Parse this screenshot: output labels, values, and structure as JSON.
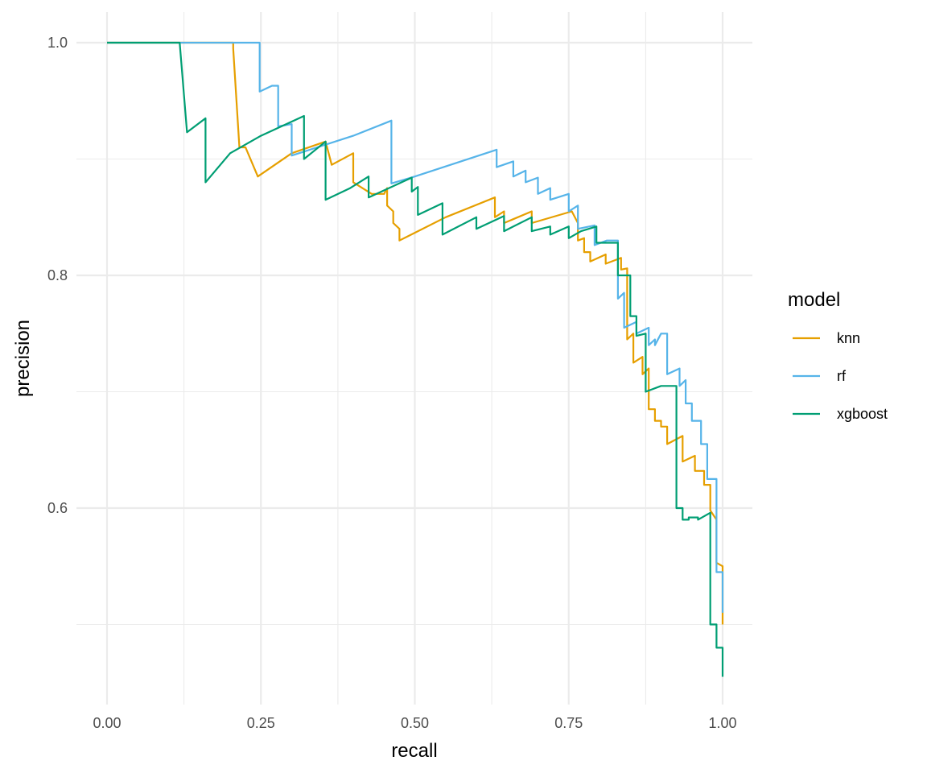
{
  "chart_data": {
    "type": "line",
    "xlabel": "recall",
    "ylabel": "precision",
    "xlim": [
      0,
      1
    ],
    "ylim": [
      0.47,
      1.0
    ],
    "x_ticks": [
      0.0,
      0.25,
      0.5,
      0.75,
      1.0
    ],
    "x_tick_labels": [
      "0.00",
      "0.25",
      "0.50",
      "0.75",
      "1.00"
    ],
    "y_ticks": [
      0.6,
      0.8,
      1.0
    ],
    "y_tick_labels": [
      "0.6",
      "0.8",
      "1.0"
    ],
    "grid": true,
    "legend": {
      "title": "model",
      "position": "right"
    },
    "series": [
      {
        "name": "knn",
        "color": "#E69F00",
        "points": [
          [
            0.0,
            1.0
          ],
          [
            0.205,
            1.0
          ],
          [
            0.205,
            0.995
          ],
          [
            0.215,
            0.91
          ],
          [
            0.225,
            0.91
          ],
          [
            0.245,
            0.885
          ],
          [
            0.3,
            0.905
          ],
          [
            0.355,
            0.915
          ],
          [
            0.365,
            0.895
          ],
          [
            0.4,
            0.905
          ],
          [
            0.4,
            0.88
          ],
          [
            0.43,
            0.87
          ],
          [
            0.45,
            0.87
          ],
          [
            0.455,
            0.875
          ],
          [
            0.455,
            0.86
          ],
          [
            0.465,
            0.855
          ],
          [
            0.465,
            0.845
          ],
          [
            0.475,
            0.84
          ],
          [
            0.475,
            0.83
          ],
          [
            0.55,
            0.85
          ],
          [
            0.63,
            0.867
          ],
          [
            0.63,
            0.85
          ],
          [
            0.645,
            0.855
          ],
          [
            0.645,
            0.845
          ],
          [
            0.69,
            0.855
          ],
          [
            0.69,
            0.845
          ],
          [
            0.755,
            0.855
          ],
          [
            0.765,
            0.845
          ],
          [
            0.765,
            0.83
          ],
          [
            0.775,
            0.832
          ],
          [
            0.775,
            0.82
          ],
          [
            0.785,
            0.82
          ],
          [
            0.785,
            0.812
          ],
          [
            0.81,
            0.818
          ],
          [
            0.81,
            0.81
          ],
          [
            0.835,
            0.815
          ],
          [
            0.835,
            0.805
          ],
          [
            0.845,
            0.806
          ],
          [
            0.845,
            0.745
          ],
          [
            0.855,
            0.75
          ],
          [
            0.855,
            0.725
          ],
          [
            0.87,
            0.73
          ],
          [
            0.87,
            0.715
          ],
          [
            0.88,
            0.72
          ],
          [
            0.88,
            0.685
          ],
          [
            0.89,
            0.685
          ],
          [
            0.89,
            0.675
          ],
          [
            0.9,
            0.675
          ],
          [
            0.9,
            0.67
          ],
          [
            0.91,
            0.67
          ],
          [
            0.91,
            0.655
          ],
          [
            0.935,
            0.662
          ],
          [
            0.935,
            0.64
          ],
          [
            0.955,
            0.645
          ],
          [
            0.955,
            0.632
          ],
          [
            0.97,
            0.632
          ],
          [
            0.97,
            0.62
          ],
          [
            0.98,
            0.62
          ],
          [
            0.98,
            0.598
          ],
          [
            0.99,
            0.59
          ],
          [
            0.99,
            0.553
          ],
          [
            1.0,
            0.55
          ],
          [
            1.0,
            0.5
          ]
        ]
      },
      {
        "name": "rf",
        "color": "#56B4E9",
        "points": [
          [
            0.0,
            1.0
          ],
          [
            0.248,
            1.0
          ],
          [
            0.248,
            0.958
          ],
          [
            0.268,
            0.963
          ],
          [
            0.278,
            0.963
          ],
          [
            0.278,
            0.928
          ],
          [
            0.3,
            0.93
          ],
          [
            0.3,
            0.903
          ],
          [
            0.4,
            0.92
          ],
          [
            0.462,
            0.933
          ],
          [
            0.462,
            0.879
          ],
          [
            0.5,
            0.885
          ],
          [
            0.633,
            0.908
          ],
          [
            0.633,
            0.893
          ],
          [
            0.66,
            0.898
          ],
          [
            0.66,
            0.885
          ],
          [
            0.68,
            0.89
          ],
          [
            0.68,
            0.88
          ],
          [
            0.7,
            0.884
          ],
          [
            0.7,
            0.87
          ],
          [
            0.72,
            0.875
          ],
          [
            0.72,
            0.865
          ],
          [
            0.75,
            0.87
          ],
          [
            0.75,
            0.855
          ],
          [
            0.765,
            0.86
          ],
          [
            0.765,
            0.84
          ],
          [
            0.792,
            0.843
          ],
          [
            0.792,
            0.826
          ],
          [
            0.812,
            0.83
          ],
          [
            0.83,
            0.83
          ],
          [
            0.83,
            0.78
          ],
          [
            0.84,
            0.785
          ],
          [
            0.84,
            0.755
          ],
          [
            0.86,
            0.76
          ],
          [
            0.86,
            0.75
          ],
          [
            0.88,
            0.755
          ],
          [
            0.88,
            0.74
          ],
          [
            0.89,
            0.745
          ],
          [
            0.89,
            0.74
          ],
          [
            0.9,
            0.75
          ],
          [
            0.91,
            0.75
          ],
          [
            0.91,
            0.715
          ],
          [
            0.93,
            0.72
          ],
          [
            0.93,
            0.705
          ],
          [
            0.94,
            0.71
          ],
          [
            0.94,
            0.69
          ],
          [
            0.95,
            0.69
          ],
          [
            0.95,
            0.675
          ],
          [
            0.965,
            0.675
          ],
          [
            0.965,
            0.655
          ],
          [
            0.975,
            0.655
          ],
          [
            0.975,
            0.625
          ],
          [
            0.99,
            0.625
          ],
          [
            0.99,
            0.545
          ],
          [
            1.0,
            0.545
          ],
          [
            1.0,
            0.51
          ]
        ]
      },
      {
        "name": "xgboost",
        "color": "#009E73",
        "points": [
          [
            0.0,
            1.0
          ],
          [
            0.118,
            1.0
          ],
          [
            0.13,
            0.923
          ],
          [
            0.16,
            0.935
          ],
          [
            0.16,
            0.88
          ],
          [
            0.2,
            0.905
          ],
          [
            0.25,
            0.92
          ],
          [
            0.32,
            0.937
          ],
          [
            0.32,
            0.9
          ],
          [
            0.355,
            0.915
          ],
          [
            0.355,
            0.865
          ],
          [
            0.395,
            0.875
          ],
          [
            0.425,
            0.885
          ],
          [
            0.425,
            0.867
          ],
          [
            0.495,
            0.884
          ],
          [
            0.495,
            0.872
          ],
          [
            0.505,
            0.876
          ],
          [
            0.505,
            0.852
          ],
          [
            0.545,
            0.862
          ],
          [
            0.545,
            0.835
          ],
          [
            0.6,
            0.85
          ],
          [
            0.6,
            0.84
          ],
          [
            0.645,
            0.851
          ],
          [
            0.645,
            0.838
          ],
          [
            0.69,
            0.85
          ],
          [
            0.69,
            0.838
          ],
          [
            0.72,
            0.842
          ],
          [
            0.72,
            0.835
          ],
          [
            0.75,
            0.842
          ],
          [
            0.75,
            0.832
          ],
          [
            0.77,
            0.838
          ],
          [
            0.795,
            0.842
          ],
          [
            0.795,
            0.828
          ],
          [
            0.83,
            0.828
          ],
          [
            0.83,
            0.8
          ],
          [
            0.85,
            0.8
          ],
          [
            0.85,
            0.765
          ],
          [
            0.86,
            0.765
          ],
          [
            0.86,
            0.748
          ],
          [
            0.875,
            0.75
          ],
          [
            0.875,
            0.7
          ],
          [
            0.9,
            0.705
          ],
          [
            0.925,
            0.705
          ],
          [
            0.925,
            0.6
          ],
          [
            0.935,
            0.6
          ],
          [
            0.935,
            0.59
          ],
          [
            0.945,
            0.59
          ],
          [
            0.945,
            0.592
          ],
          [
            0.96,
            0.592
          ],
          [
            0.96,
            0.59
          ],
          [
            0.98,
            0.596
          ],
          [
            0.98,
            0.5
          ],
          [
            0.99,
            0.5
          ],
          [
            0.99,
            0.48
          ],
          [
            1.0,
            0.48
          ],
          [
            1.0,
            0.455
          ]
        ]
      }
    ]
  }
}
